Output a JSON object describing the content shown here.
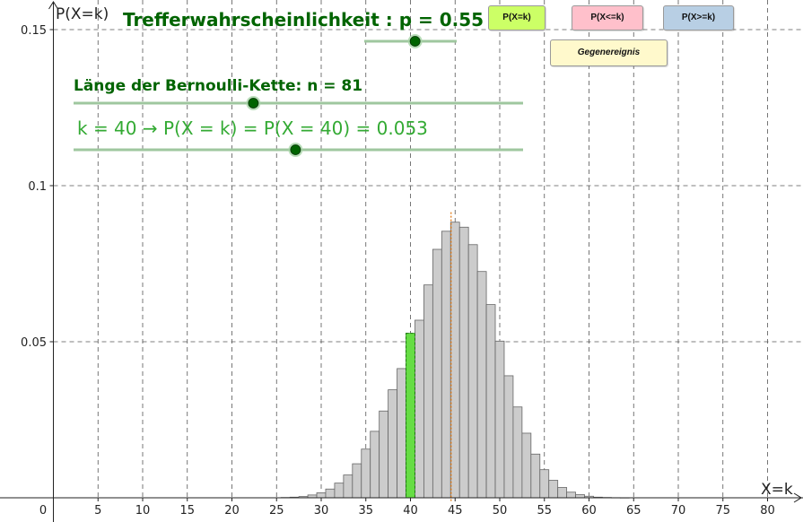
{
  "sliders": {
    "p_label": "Trefferwahrscheinlichkeit : p = 0.55",
    "n_label": "Länge der Bernoulli-Kette: n = 81",
    "k_label": "k = 40 → P(X = k) = P(X = 40) = 0.053",
    "p_value": 0.55,
    "n_value": 81,
    "k_value": 40,
    "color": "#006400",
    "k_color": "#33aa33"
  },
  "buttons": {
    "eq": "P(X=k)",
    "le": "P(X<=k)",
    "ge": "P(X>=k)",
    "complement": "Gegenereignis",
    "eq_color": "#ccff66",
    "le_color": "#ffc0cb",
    "ge_color": "#b8cfe4",
    "complement_color": "#fff9cc"
  },
  "chart_data": {
    "type": "bar",
    "xlabel": "X=k",
    "ylabel": "P(X=k)",
    "xlim": [
      0,
      84
    ],
    "ylim": [
      0,
      0.15
    ],
    "x_ticks": [
      "0",
      "5",
      "10",
      "15",
      "20",
      "25",
      "30",
      "35",
      "40",
      "45",
      "50",
      "55",
      "60",
      "65",
      "70",
      "75",
      "80"
    ],
    "y_ticks": [
      "0.05",
      "0.1",
      "0.15"
    ],
    "grid": true,
    "bar_color": "#cccccc",
    "highlight_color": "#66dd44",
    "highlight_k": 40,
    "mean_line_x": 44.55,
    "categories": [
      26,
      27,
      28,
      29,
      30,
      31,
      32,
      33,
      34,
      35,
      36,
      37,
      38,
      39,
      40,
      41,
      42,
      43,
      44,
      45,
      46,
      47,
      48,
      49,
      50,
      51,
      52,
      53,
      54,
      55,
      56,
      57,
      58,
      59,
      60,
      61,
      62,
      63,
      64
    ],
    "values": [
      0.0001,
      0.0002,
      0.0004,
      0.0009,
      0.0016,
      0.0028,
      0.0047,
      0.0073,
      0.0109,
      0.0156,
      0.0213,
      0.0278,
      0.0346,
      0.0414,
      0.0527,
      0.0569,
      0.0682,
      0.0796,
      0.0854,
      0.0883,
      0.0867,
      0.0811,
      0.0725,
      0.0619,
      0.0502,
      0.0391,
      0.0291,
      0.0207,
      0.014,
      0.009,
      0.0056,
      0.0033,
      0.0018,
      0.001,
      0.0005,
      0.0002,
      0.0001,
      4e-05,
      1e-05
    ]
  }
}
